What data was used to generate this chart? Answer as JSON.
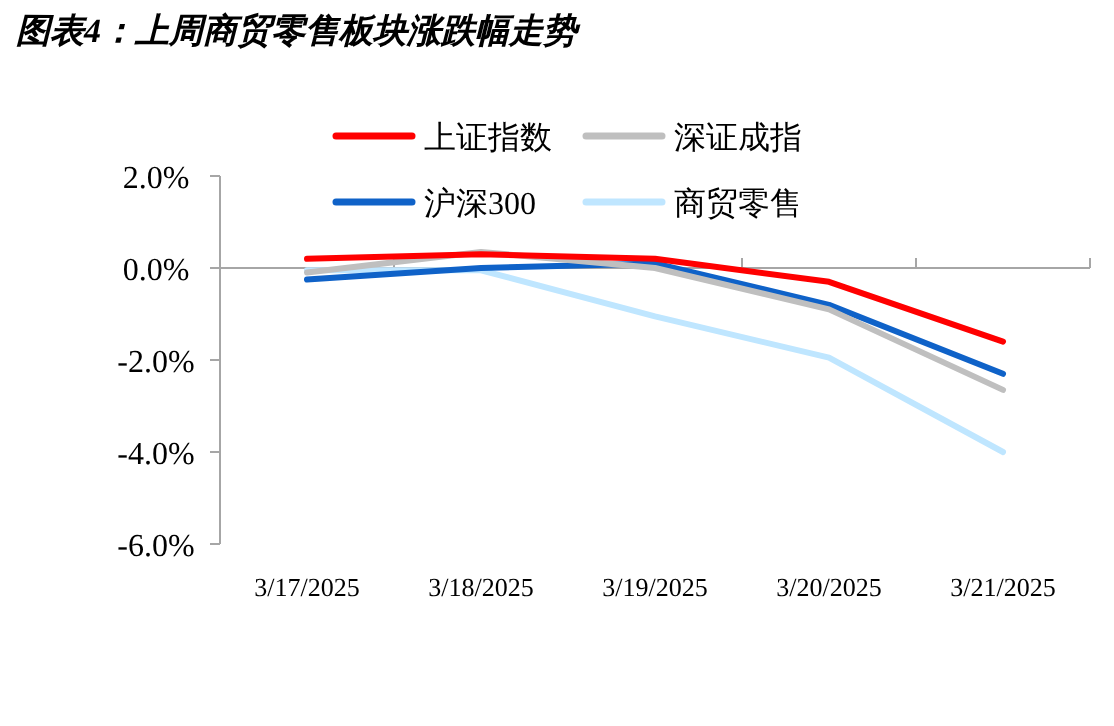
{
  "chart_data": {
    "type": "line",
    "title": "图表4：上周商贸零售板块涨跌幅走势",
    "categories": [
      "3/17/2025",
      "3/18/2025",
      "3/19/2025",
      "3/20/2025",
      "3/21/2025"
    ],
    "series": [
      {
        "name": "上证指数",
        "color": "#ff0000",
        "values": [
          0.2,
          0.3,
          0.2,
          -0.3,
          -1.6
        ]
      },
      {
        "name": "深证成指",
        "color": "#bfbfbf",
        "values": [
          -0.1,
          0.35,
          0.0,
          -0.9,
          -2.65
        ]
      },
      {
        "name": "沪深300",
        "color": "#0f62c8",
        "values": [
          -0.25,
          0.0,
          0.1,
          -0.8,
          -2.3
        ]
      },
      {
        "name": "商贸零售",
        "color": "#bfe6ff",
        "values": [
          -0.05,
          -0.05,
          -1.05,
          -1.95,
          -4.0
        ]
      }
    ],
    "ylim": [
      -6,
      2
    ],
    "yticks": [
      {
        "value": 2,
        "label": "2.0%"
      },
      {
        "value": 0,
        "label": "0.0%"
      },
      {
        "value": -2,
        "label": "-2.0%"
      },
      {
        "value": -4,
        "label": "-4.0%"
      },
      {
        "value": -6,
        "label": "-6.0%"
      }
    ],
    "legend": "top",
    "marker": "none",
    "line_style": "solid"
  }
}
